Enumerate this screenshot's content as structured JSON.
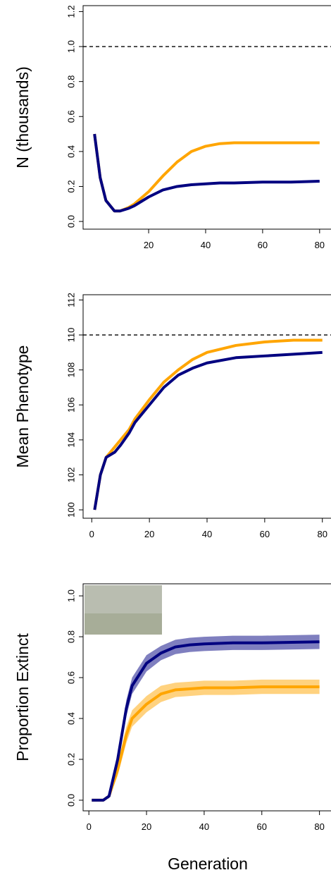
{
  "chart_data": [
    {
      "type": "line",
      "y_label": "N (thousands)",
      "x": [
        1,
        3,
        5,
        8,
        10,
        13,
        15,
        20,
        25,
        30,
        35,
        40,
        45,
        50,
        60,
        70,
        80
      ],
      "series": [
        {
          "color": "#ffa500",
          "values": [
            0.5,
            0.25,
            0.12,
            0.06,
            0.06,
            0.08,
            0.1,
            0.17,
            0.26,
            0.34,
            0.4,
            0.43,
            0.445,
            0.45,
            0.45,
            0.45,
            0.45
          ]
        },
        {
          "color": "#000080",
          "values": [
            0.5,
            0.25,
            0.12,
            0.06,
            0.06,
            0.075,
            0.09,
            0.14,
            0.18,
            0.2,
            0.21,
            0.215,
            0.22,
            0.22,
            0.225,
            0.225,
            0.23
          ]
        }
      ],
      "reference_line": 1.0,
      "xlim": [
        -3,
        84
      ],
      "xticks": [
        20,
        40,
        60,
        80
      ],
      "ylim": [
        -0.044,
        1.234
      ],
      "yticks": [
        {
          "value": 0,
          "label": "0.0"
        },
        {
          "value": 0.2,
          "label": "0.2"
        },
        {
          "value": 0.4,
          "label": "0.4"
        },
        {
          "value": 0.6,
          "label": "0.6"
        },
        {
          "value": 0.8,
          "label": "0.8"
        },
        {
          "value": 1.0,
          "label": "1.0"
        },
        {
          "value": 1.2,
          "label": "1.2"
        }
      ]
    },
    {
      "type": "line",
      "y_label": "Mean Phenotype",
      "x": [
        1,
        3,
        5,
        8,
        10,
        13,
        15,
        20,
        25,
        30,
        35,
        40,
        50,
        60,
        70,
        80
      ],
      "series": [
        {
          "color": "#ffa500",
          "values": [
            100,
            102,
            103,
            103.6,
            104,
            104.6,
            105.2,
            106.3,
            107.3,
            108,
            108.6,
            109,
            109.4,
            109.6,
            109.7,
            109.7
          ]
        },
        {
          "color": "#000080",
          "values": [
            100,
            102,
            103,
            103.3,
            103.7,
            104.4,
            105,
            106,
            107,
            107.7,
            108.1,
            108.4,
            108.7,
            108.8,
            108.9,
            109
          ]
        }
      ],
      "reference_line": 110,
      "xlim": [
        -3,
        83
      ],
      "xticks": [
        0,
        20,
        40,
        60,
        80
      ],
      "ylim": [
        99.52,
        112.3
      ],
      "yticks": [
        100,
        102,
        104,
        106,
        108,
        110,
        112
      ]
    },
    {
      "type": "band",
      "y_label": "Proportion Extinct",
      "x_label": "Generation",
      "x": [
        1,
        5,
        7,
        10,
        13,
        15,
        20,
        25,
        30,
        35,
        40,
        50,
        60,
        80
      ],
      "series": [
        {
          "color": "#ffa500",
          "values": [
            0,
            0,
            0.02,
            0.15,
            0.32,
            0.4,
            0.47,
            0.52,
            0.54,
            0.545,
            0.55,
            0.55,
            0.555,
            0.555
          ],
          "band_lower": [
            0,
            0,
            0.01,
            0.12,
            0.28,
            0.36,
            0.43,
            0.48,
            0.505,
            0.51,
            0.515,
            0.515,
            0.52,
            0.52
          ],
          "band_upper": [
            0,
            0,
            0.03,
            0.18,
            0.36,
            0.44,
            0.51,
            0.56,
            0.575,
            0.58,
            0.585,
            0.585,
            0.59,
            0.59
          ]
        },
        {
          "color": "#000080",
          "values": [
            0,
            0,
            0.02,
            0.2,
            0.45,
            0.56,
            0.67,
            0.72,
            0.75,
            0.76,
            0.765,
            0.77,
            0.77,
            0.775
          ],
          "band_lower": [
            0,
            0,
            0.01,
            0.17,
            0.41,
            0.52,
            0.63,
            0.685,
            0.715,
            0.725,
            0.73,
            0.735,
            0.735,
            0.74
          ],
          "band_upper": [
            0,
            0,
            0.03,
            0.23,
            0.49,
            0.6,
            0.71,
            0.755,
            0.785,
            0.795,
            0.8,
            0.805,
            0.805,
            0.81
          ]
        }
      ],
      "xlim": [
        -2,
        84
      ],
      "xticks": [
        0,
        20,
        40,
        60,
        80
      ],
      "ylim": [
        -0.052,
        1.059
      ],
      "yticks": [
        {
          "value": 0,
          "label": "0.0"
        },
        {
          "value": 0.2,
          "label": "0.2"
        },
        {
          "value": 0.4,
          "label": "0.4"
        },
        {
          "value": 0.6,
          "label": "0.6"
        },
        {
          "value": 0.8,
          "label": "0.8"
        },
        {
          "value": 1.0,
          "label": "1.0"
        }
      ]
    }
  ]
}
